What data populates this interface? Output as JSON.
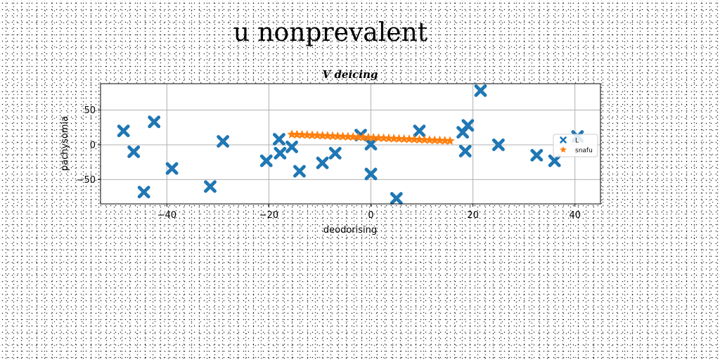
{
  "page": {
    "title": "u nonprevalent"
  },
  "chart_data": {
    "type": "scatter",
    "title": "V deicing",
    "xlabel": "deodorising",
    "ylabel": "pachysomia",
    "xlim": [
      -53,
      45
    ],
    "ylim": [
      -85,
      88
    ],
    "xticks": [
      -40,
      -20,
      0,
      20,
      40
    ],
    "yticks": [
      -50,
      0,
      50
    ],
    "xtick_labels": [
      "−40",
      "−20",
      "0",
      "20",
      "40"
    ],
    "ytick_labels": [
      "−50",
      "0",
      "50"
    ],
    "grid": true,
    "legend_position": "center-right",
    "series": [
      {
        "name": "L",
        "marker": "x-thick",
        "color": "#1f77b4",
        "x": [
          -48.5,
          -46.5,
          -44.5,
          -42.5,
          -39.0,
          -31.5,
          -29.0,
          -20.5,
          -18.0,
          -17.8,
          -15.5,
          -14.0,
          -9.5,
          -7.0,
          -2.0,
          0.0,
          0.0,
          5.0,
          9.5,
          18.0,
          18.5,
          19.0,
          21.5,
          25.0,
          32.5,
          36.0,
          40.5
        ],
        "y": [
          20,
          -10,
          -68,
          33,
          -34,
          -60,
          5,
          -23,
          8,
          -12,
          -3,
          -38,
          -26,
          -12,
          14,
          1,
          -42,
          -77,
          20,
          18,
          -9,
          28,
          78,
          0,
          -15,
          -23,
          12
        ]
      },
      {
        "name": "snafu",
        "marker": "star",
        "color": "#ff7f0e",
        "x": [
          -15.5,
          -14.5,
          -13.5,
          -12.5,
          -11.5,
          -10.5,
          -9.5,
          -8.5,
          -7.5,
          -6.5,
          -5.5,
          -4.5,
          -3.5,
          -2.5,
          -1.5,
          -0.5,
          0.5,
          1.5,
          2.5,
          3.5,
          4.5,
          5.5,
          6.5,
          7.5,
          8.5,
          9.5,
          10.5,
          11.5,
          12.5,
          13.5,
          14.5,
          15.5
        ],
        "y": [
          15.0,
          14.7,
          14.4,
          14.1,
          13.8,
          13.5,
          13.2,
          12.9,
          12.6,
          12.3,
          12.0,
          11.7,
          11.4,
          11.1,
          10.8,
          10.5,
          10.2,
          9.9,
          9.6,
          9.3,
          9.0,
          8.7,
          8.4,
          8.1,
          7.8,
          7.5,
          7.2,
          6.9,
          6.6,
          6.3,
          6.0,
          5.7
        ]
      }
    ]
  }
}
